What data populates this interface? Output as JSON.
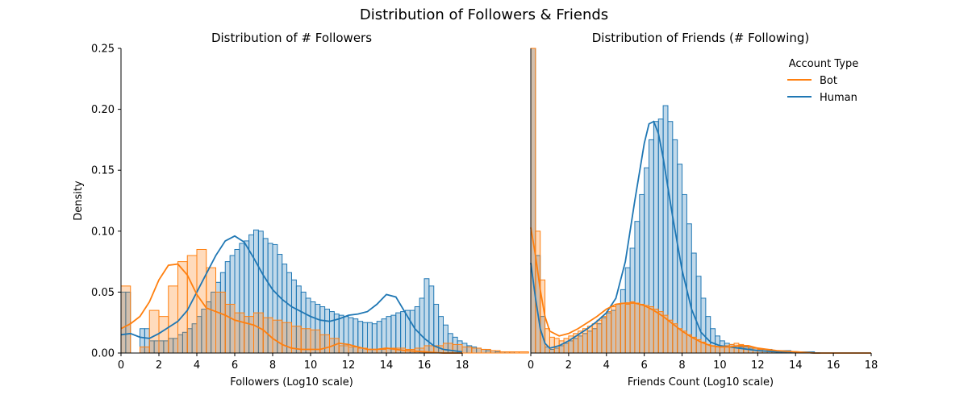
{
  "figure_title": "Distribution of Followers & Friends",
  "colors": {
    "bot": "#ff7f0e",
    "human": "#1f77b4",
    "overlap": "#c6c1b8"
  },
  "legend": {
    "title": "Account Type",
    "placement": "top-right",
    "entries": [
      "Bot",
      "Human"
    ]
  },
  "chart_data": [
    {
      "type": "area",
      "title": "Distribution of # Followers",
      "xlabel": "Followers (Log10 scale)",
      "ylabel": "Density",
      "xlim": [
        0,
        18
      ],
      "ylim": [
        0,
        0.25
      ],
      "xticks": [
        "0",
        "2",
        "4",
        "6",
        "8",
        "10",
        "12",
        "14",
        "16",
        "18"
      ],
      "yticks": [
        "0.00",
        "0.05",
        "0.10",
        "0.15",
        "0.20",
        "0.25"
      ],
      "grid": false,
      "series": [
        {
          "name": "Bot",
          "hist_bin_width": 0.5,
          "hist_x_start": 0,
          "hist": [
            0.055,
            0.0,
            0.005,
            0.035,
            0.03,
            0.055,
            0.075,
            0.08,
            0.085,
            0.07,
            0.05,
            0.04,
            0.033,
            0.03,
            0.033,
            0.029,
            0.027,
            0.025,
            0.022,
            0.02,
            0.019,
            0.015,
            0.012,
            0.006,
            0.005,
            0.004,
            0.003,
            0.003,
            0.004,
            0.004,
            0.003,
            0.004,
            0.006,
            0.006,
            0.008,
            0.007,
            0.005,
            0.004,
            0.003,
            0.002,
            0.001,
            0.001,
            0.001,
            0.0,
            0.0,
            0.0,
            0.0,
            0.0,
            0.0,
            0.0
          ],
          "kde_x": [
            0,
            0.5,
            1,
            1.5,
            2,
            2.5,
            3,
            3.5,
            4,
            4.5,
            5,
            5.5,
            6,
            6.5,
            7,
            7.5,
            8,
            8.5,
            9,
            9.5,
            10,
            10.5,
            11,
            11.5,
            12,
            12.5,
            13,
            13.5,
            14,
            14.5,
            15,
            16,
            17,
            18
          ],
          "kde_y": [
            0.02,
            0.024,
            0.03,
            0.042,
            0.06,
            0.072,
            0.073,
            0.064,
            0.048,
            0.037,
            0.034,
            0.031,
            0.027,
            0.025,
            0.023,
            0.019,
            0.012,
            0.007,
            0.004,
            0.003,
            0.003,
            0.003,
            0.005,
            0.008,
            0.007,
            0.005,
            0.003,
            0.003,
            0.004,
            0.003,
            0.002,
            0.001,
            0.0,
            0.0
          ]
        },
        {
          "name": "Human",
          "hist_bin_width": 0.25,
          "hist_x_start": 0,
          "hist": [
            0.05,
            0.05,
            0.0,
            0.0,
            0.02,
            0.02,
            0.01,
            0.01,
            0.01,
            0.01,
            0.012,
            0.012,
            0.015,
            0.017,
            0.02,
            0.024,
            0.03,
            0.036,
            0.042,
            0.05,
            0.058,
            0.066,
            0.075,
            0.08,
            0.085,
            0.09,
            0.092,
            0.097,
            0.101,
            0.1,
            0.094,
            0.09,
            0.089,
            0.081,
            0.073,
            0.066,
            0.06,
            0.055,
            0.05,
            0.045,
            0.042,
            0.04,
            0.038,
            0.036,
            0.034,
            0.032,
            0.031,
            0.03,
            0.029,
            0.028,
            0.026,
            0.025,
            0.025,
            0.024,
            0.026,
            0.028,
            0.03,
            0.031,
            0.033,
            0.034,
            0.035,
            0.035,
            0.038,
            0.045,
            0.061,
            0.055,
            0.04,
            0.03,
            0.023,
            0.016,
            0.013,
            0.01,
            0.008,
            0.006,
            0.005,
            0.004,
            0.003,
            0.002,
            0.002,
            0.001,
            0.001,
            0.001,
            0.001,
            0.0,
            0.0,
            0.0,
            0.0,
            0.0,
            0.0,
            0.0,
            0.0,
            0.0,
            0.0,
            0.0,
            0.0,
            0.0,
            0.0,
            0.0,
            0.0,
            0.0,
            0.0,
            0.0
          ],
          "kde_x": [
            0,
            0.5,
            1,
            1.5,
            2,
            2.5,
            3,
            3.5,
            4,
            4.5,
            5,
            5.5,
            6,
            6.5,
            7,
            7.5,
            8,
            8.5,
            9,
            9.5,
            10,
            10.5,
            11,
            11.5,
            12,
            12.5,
            13,
            13.5,
            14,
            14.5,
            15,
            15.5,
            16,
            16.5,
            17,
            18
          ],
          "kde_y": [
            0.015,
            0.016,
            0.013,
            0.012,
            0.016,
            0.021,
            0.026,
            0.035,
            0.05,
            0.065,
            0.08,
            0.092,
            0.096,
            0.091,
            0.078,
            0.064,
            0.052,
            0.044,
            0.038,
            0.034,
            0.03,
            0.027,
            0.026,
            0.028,
            0.031,
            0.032,
            0.034,
            0.04,
            0.048,
            0.046,
            0.033,
            0.02,
            0.012,
            0.006,
            0.003,
            0.001
          ]
        }
      ]
    },
    {
      "type": "area",
      "title": "Distribution of Friends (# Following)",
      "xlabel": "Friends Count (Log10 scale)",
      "ylabel": "",
      "xlim": [
        0,
        18
      ],
      "ylim": [
        0,
        0.25
      ],
      "xticks": [
        "0",
        "2",
        "4",
        "6",
        "8",
        "10",
        "12",
        "14",
        "16",
        "18"
      ],
      "yticks": [],
      "grid": false,
      "series": [
        {
          "name": "Bot",
          "hist_bin_width": 0.25,
          "hist_x_start": 0,
          "hist": [
            0.27,
            0.1,
            0.06,
            0.02,
            0.013,
            0.012,
            0.01,
            0.012,
            0.014,
            0.016,
            0.018,
            0.02,
            0.022,
            0.024,
            0.027,
            0.03,
            0.034,
            0.038,
            0.04,
            0.041,
            0.04,
            0.042,
            0.041,
            0.04,
            0.039,
            0.038,
            0.036,
            0.034,
            0.031,
            0.027,
            0.024,
            0.02,
            0.018,
            0.015,
            0.013,
            0.011,
            0.009,
            0.007,
            0.006,
            0.005,
            0.005,
            0.006,
            0.007,
            0.008,
            0.007,
            0.006,
            0.005,
            0.004,
            0.003,
            0.002,
            0.002,
            0.001,
            0.001,
            0.001,
            0.0,
            0.0,
            0.0,
            0.0,
            0.0,
            0.0,
            0.0,
            0.0,
            0.0,
            0.0,
            0.0,
            0.0,
            0.0,
            0.0,
            0.0,
            0.0,
            0.0,
            0.0
          ],
          "kde_x": [
            0,
            0.25,
            0.5,
            0.75,
            1,
            1.5,
            2,
            2.5,
            3,
            3.5,
            4,
            4.5,
            5,
            5.5,
            6,
            6.5,
            7,
            7.5,
            8,
            8.5,
            9,
            9.5,
            10,
            10.5,
            11,
            11.5,
            12,
            13,
            14,
            15,
            18
          ],
          "kde_y": [
            0.103,
            0.08,
            0.052,
            0.03,
            0.018,
            0.014,
            0.016,
            0.02,
            0.025,
            0.03,
            0.036,
            0.04,
            0.041,
            0.041,
            0.039,
            0.035,
            0.03,
            0.024,
            0.018,
            0.013,
            0.009,
            0.006,
            0.005,
            0.005,
            0.006,
            0.006,
            0.004,
            0.002,
            0.001,
            0.0,
            0.0
          ]
        },
        {
          "name": "Human",
          "hist_bin_width": 0.25,
          "hist_x_start": 0,
          "hist": [
            0.27,
            0.08,
            0.03,
            0.005,
            0.003,
            0.004,
            0.006,
            0.008,
            0.01,
            0.012,
            0.014,
            0.016,
            0.018,
            0.02,
            0.024,
            0.029,
            0.033,
            0.035,
            0.04,
            0.052,
            0.07,
            0.086,
            0.108,
            0.13,
            0.152,
            0.175,
            0.19,
            0.192,
            0.203,
            0.19,
            0.175,
            0.155,
            0.13,
            0.106,
            0.082,
            0.063,
            0.045,
            0.03,
            0.02,
            0.014,
            0.01,
            0.008,
            0.007,
            0.006,
            0.005,
            0.005,
            0.004,
            0.004,
            0.003,
            0.003,
            0.003,
            0.002,
            0.002,
            0.002,
            0.002,
            0.001,
            0.001,
            0.001,
            0.001,
            0.001,
            0.0,
            0.0,
            0.0,
            0.0,
            0.0,
            0.0,
            0.0,
            0.0,
            0.0,
            0.0,
            0.0,
            0.0
          ],
          "kde_x": [
            0,
            0.25,
            0.5,
            0.75,
            1,
            1.5,
            2,
            2.5,
            3,
            3.5,
            4,
            4.5,
            5,
            5.5,
            6,
            6.25,
            6.5,
            6.75,
            7,
            7.5,
            8,
            8.5,
            9,
            9.5,
            10,
            11,
            12,
            13,
            14,
            15,
            15.3
          ],
          "kde_y": [
            0.074,
            0.045,
            0.02,
            0.008,
            0.004,
            0.006,
            0.01,
            0.015,
            0.02,
            0.026,
            0.033,
            0.045,
            0.075,
            0.125,
            0.172,
            0.188,
            0.19,
            0.18,
            0.16,
            0.112,
            0.068,
            0.036,
            0.017,
            0.009,
            0.006,
            0.004,
            0.002,
            0.001,
            0.001,
            0.0,
            0.0
          ]
        }
      ]
    }
  ]
}
